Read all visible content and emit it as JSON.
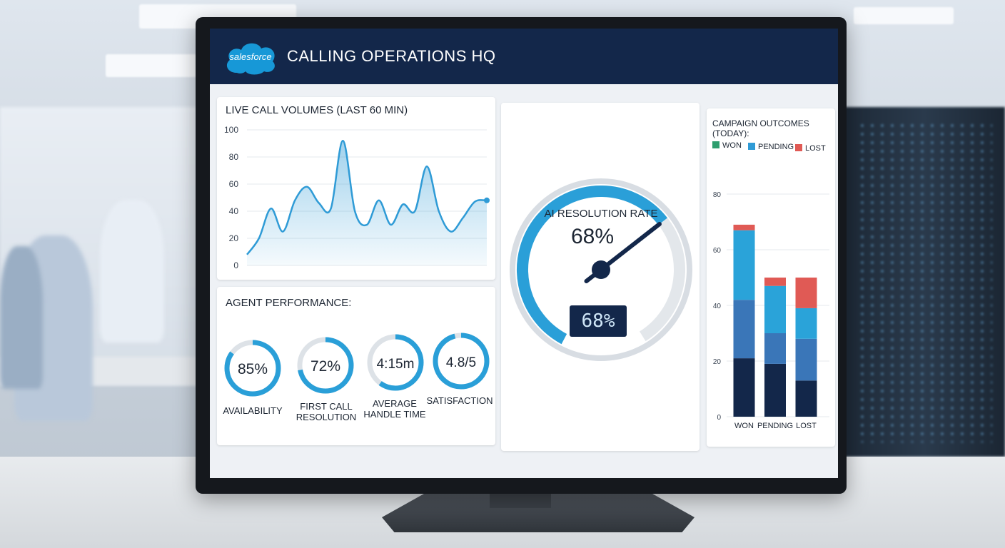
{
  "header": {
    "logo_text": "salesforce",
    "title": "CALLING OPERATIONS HQ"
  },
  "live_calls": {
    "title": "LIVE CALL VOLUMES (LAST 60 MIN)",
    "chart_data": {
      "type": "area",
      "title": "LIVE CALL VOLUMES (LAST 60 MIN)",
      "ylim": [
        0,
        100
      ],
      "yticks": [
        "0",
        "20",
        "40",
        "60",
        "80",
        "100"
      ],
      "grid": true,
      "x": [
        0,
        3,
        6,
        9,
        12,
        15,
        18,
        21,
        24,
        27,
        30,
        33,
        36,
        39,
        42,
        45,
        48,
        51,
        54,
        57,
        60
      ],
      "values": [
        8,
        20,
        42,
        25,
        48,
        58,
        46,
        42,
        92,
        40,
        30,
        48,
        30,
        45,
        40,
        73,
        40,
        25,
        35,
        47,
        48
      ],
      "color": "#2f9bd6"
    }
  },
  "agent_performance": {
    "title": "AGENT PERFORMANCE:",
    "kpis": [
      {
        "value": "85%",
        "label_line1": "AVAILABILITY",
        "label_line2": "",
        "progress": 0.85
      },
      {
        "value": "72%",
        "label_line1": "FIRST CALL",
        "label_line2": "RESOLUTION",
        "progress": 0.72
      },
      {
        "value": "4:15m",
        "label_line1": "AVERAGE",
        "label_line2": "HANDLE TIME",
        "progress": 0.6
      },
      {
        "value": "4.8/5",
        "label_line1": "SATISFACTION",
        "label_line2": "",
        "progress": 0.96
      }
    ]
  },
  "ai_gauge": {
    "label": "AI RESOLUTION RATE",
    "value": "68%",
    "readout": "68%",
    "progress": 0.68
  },
  "campaign": {
    "title": "CAMPAIGN OUTCOMES (TODAY):",
    "legend": [
      {
        "label": "WON",
        "color": "#2e9e6e"
      },
      {
        "label": "PENDING",
        "color": "#2f9bd6"
      },
      {
        "label": "LOST",
        "color": "#e05a55"
      }
    ],
    "chart_data": {
      "type": "bar",
      "stacked": true,
      "categories": [
        "WON",
        "PENDING",
        "LOST"
      ],
      "ylim": [
        0,
        80
      ],
      "yticks": [
        "0",
        "20",
        "40",
        "60",
        "80"
      ],
      "series": [
        {
          "values": [
            21,
            19,
            13
          ],
          "color": "#13274a"
        },
        {
          "values": [
            21,
            11,
            15
          ],
          "color": "#3a76b8"
        },
        {
          "values": [
            25,
            17,
            11
          ],
          "color": "#2aa3d9"
        },
        {
          "values": [
            2,
            3,
            11
          ],
          "color": "#e05a55"
        }
      ]
    }
  }
}
